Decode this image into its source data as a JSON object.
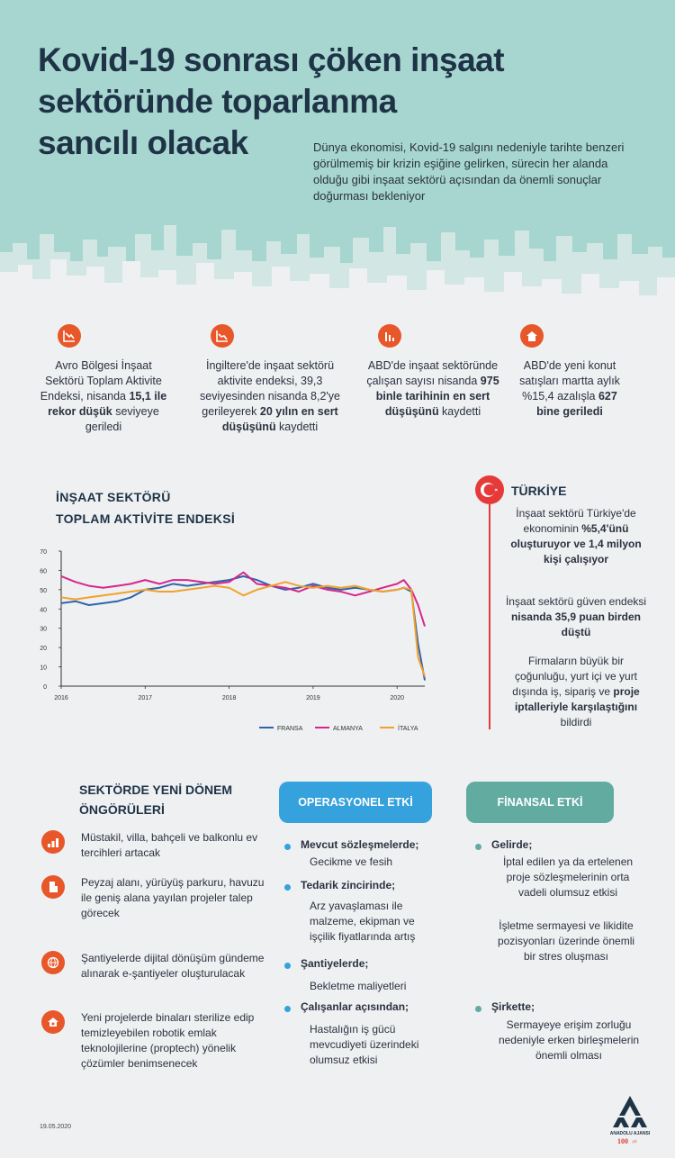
{
  "title": {
    "line1": "Kovid-19 sonrası çöken inşaat",
    "line2": "sektöründe toparlanma",
    "line3": "sancılı olacak"
  },
  "lede": "Dünya ekonomisi, Kovid-19 salgını nedeniyle tarihte benzeri görülmemiş bir krizin eşiğine gelirken, sürecin her alanda olduğu gibi inşaat sektörü açısından da önemli sonuçlar doğurması bekleniyor",
  "stats": [
    {
      "icon": "chart-down-icon",
      "pre": "Avro Bölgesi İnşaat Sektörü Toplam Aktivite Endeksi, nisanda ",
      "bold": "15,1 ile rekor düşük",
      "post": " seviyeye geriledi"
    },
    {
      "icon": "chart-down-icon",
      "pre": "İngiltere'de inşaat sektörü aktivite endeksi, 39,3 seviyesinden nisanda 8,2'ye gerileyerek ",
      "bold": "20 yılın en sert düşüşünü",
      "post": " kaydetti"
    },
    {
      "icon": "chart-down-icon",
      "pre": "ABD'de inşaat sektöründe çalışan sayısı nisanda ",
      "bold": "975 binle tarihinin en sert düşüşünü",
      "post": " kaydetti"
    },
    {
      "icon": "house-icon",
      "pre": "ABD'de yeni konut satışları martta aylık %15,4 azalışla ",
      "bold": "627 bine geriledi",
      "post": ""
    }
  ],
  "chart_title": {
    "line1": "İNŞAAT SEKTÖRÜ",
    "line2": "TOPLAM AKTİVİTE ENDEKSİ"
  },
  "chart_data": {
    "type": "line",
    "title": "İNŞAAT SEKTÖRÜ TOPLAM AKTİVİTE ENDEKSİ",
    "xlabel": "",
    "ylabel": "",
    "ylim": [
      0,
      70
    ],
    "yticks": [
      "0",
      "10",
      "20",
      "30",
      "40",
      "50",
      "60",
      "70"
    ],
    "xticks": [
      "2016",
      "2017",
      "2018",
      "2019",
      "2020"
    ],
    "xlim": [
      2016.0,
      2020.33
    ],
    "x": [
      2016.0,
      2016.17,
      2016.33,
      2016.5,
      2016.67,
      2016.83,
      2017.0,
      2017.17,
      2017.33,
      2017.5,
      2017.67,
      2017.83,
      2018.0,
      2018.17,
      2018.33,
      2018.5,
      2018.67,
      2018.83,
      2019.0,
      2019.17,
      2019.33,
      2019.5,
      2019.67,
      2019.83,
      2020.0,
      2020.08,
      2020.17,
      2020.25,
      2020.33
    ],
    "series": [
      {
        "name": "FRANSA",
        "color": "#2f63ad",
        "values": [
          43,
          44,
          42,
          43,
          44,
          46,
          50,
          51,
          53,
          52,
          53,
          54,
          55,
          57,
          55,
          52,
          50,
          51,
          53,
          51,
          50,
          51,
          50,
          49,
          50,
          51,
          49,
          22,
          3
        ]
      },
      {
        "name": "ALMANYA",
        "color": "#d8268d",
        "values": [
          57,
          54,
          52,
          51,
          52,
          53,
          55,
          53,
          55,
          55,
          54,
          53,
          54,
          59,
          53,
          52,
          51,
          49,
          52,
          50,
          49,
          47,
          49,
          51,
          53,
          55,
          50,
          42,
          31
        ]
      },
      {
        "name": "İTALYA",
        "color": "#f2a22b",
        "values": [
          46,
          45,
          46,
          47,
          48,
          49,
          50,
          49,
          49,
          50,
          51,
          52,
          51,
          47,
          50,
          52,
          54,
          52,
          51,
          52,
          51,
          52,
          50,
          49,
          50,
          51,
          50,
          15,
          5
        ]
      }
    ]
  },
  "turkey": {
    "heading": "TÜRKİYE",
    "p1_pre": "İnşaat sektörü Türkiye'de ekonominin ",
    "p1_bold": "%5,4'ünü oluşturuyor ve 1,4 milyon kişi çalışıyor",
    "p2_pre": "İnşaat sektörü güven endeksi ",
    "p2_bold": "nisanda 35,9 puan birden düştü",
    "p3_pre": "Firmaların büyük bir çoğunluğu, yurt içi ve yurt dışında iş, sipariş ve ",
    "p3_bold": "proje iptalleriyle karşılaştığını",
    "p3_post": " bildirdi"
  },
  "predictions": {
    "title_line1": "SEKTÖRDE YENİ DÖNEM",
    "title_line2": "ÖNGÖRÜLERİ",
    "items": [
      {
        "icon": "growth-chart-icon",
        "text": "Müstakil, villa, bahçeli ve balkonlu ev tercihleri artacak"
      },
      {
        "icon": "building-icon",
        "text": "Peyzaj alanı, yürüyüş parkuru, havuzu ile geniş alana yayılan projeler talep görecek"
      },
      {
        "icon": "globe-network-icon",
        "text": "Şantiyelerde dijital dönüşüm gündeme alınarak e-şantiyeler oluşturulacak"
      },
      {
        "icon": "smart-home-icon",
        "text": "Yeni projelerde binaları sterilize edip temizleyebilen robotik emlak teknolojilerine (proptech) yönelik çözümler benimsenecek"
      }
    ]
  },
  "operational": {
    "label": "OPERASYONEL ETKİ",
    "groups": [
      {
        "head": "Mevcut sözleşmelerde;",
        "body": "Gecikme ve fesih"
      },
      {
        "head": "Tedarik zincirinde;",
        "body": "Arz yavaşlaması ile malzeme, ekipman ve işçilik fiyatlarında artış"
      },
      {
        "head": "Şantiyelerde;",
        "body": "Bekletme maliyetleri"
      },
      {
        "head": "Çalışanlar açısından;",
        "body": "Hastalığın iş gücü mevcudiyeti üzerindeki olumsuz etkisi"
      }
    ]
  },
  "financial": {
    "label": "FİNANSAL ETKİ",
    "groups": [
      {
        "head": "Gelirde;",
        "body": "İptal edilen ya da ertelenen proje sözleşmelerinin orta vadeli olumsuz etkisi",
        "body2": "İşletme sermayesi ve likidite pozisyonları üzerinde önemli bir stres oluşması"
      },
      {
        "head": "Şirkette;",
        "body": "Sermayeye erişim zorluğu nedeniyle erken birleşmelerin önemli olması",
        "body2": ""
      }
    ]
  },
  "footer": {
    "date": "19.05.2020",
    "logo": "ANADOLU AJANSI",
    "logo_sub": "100 yıl"
  }
}
